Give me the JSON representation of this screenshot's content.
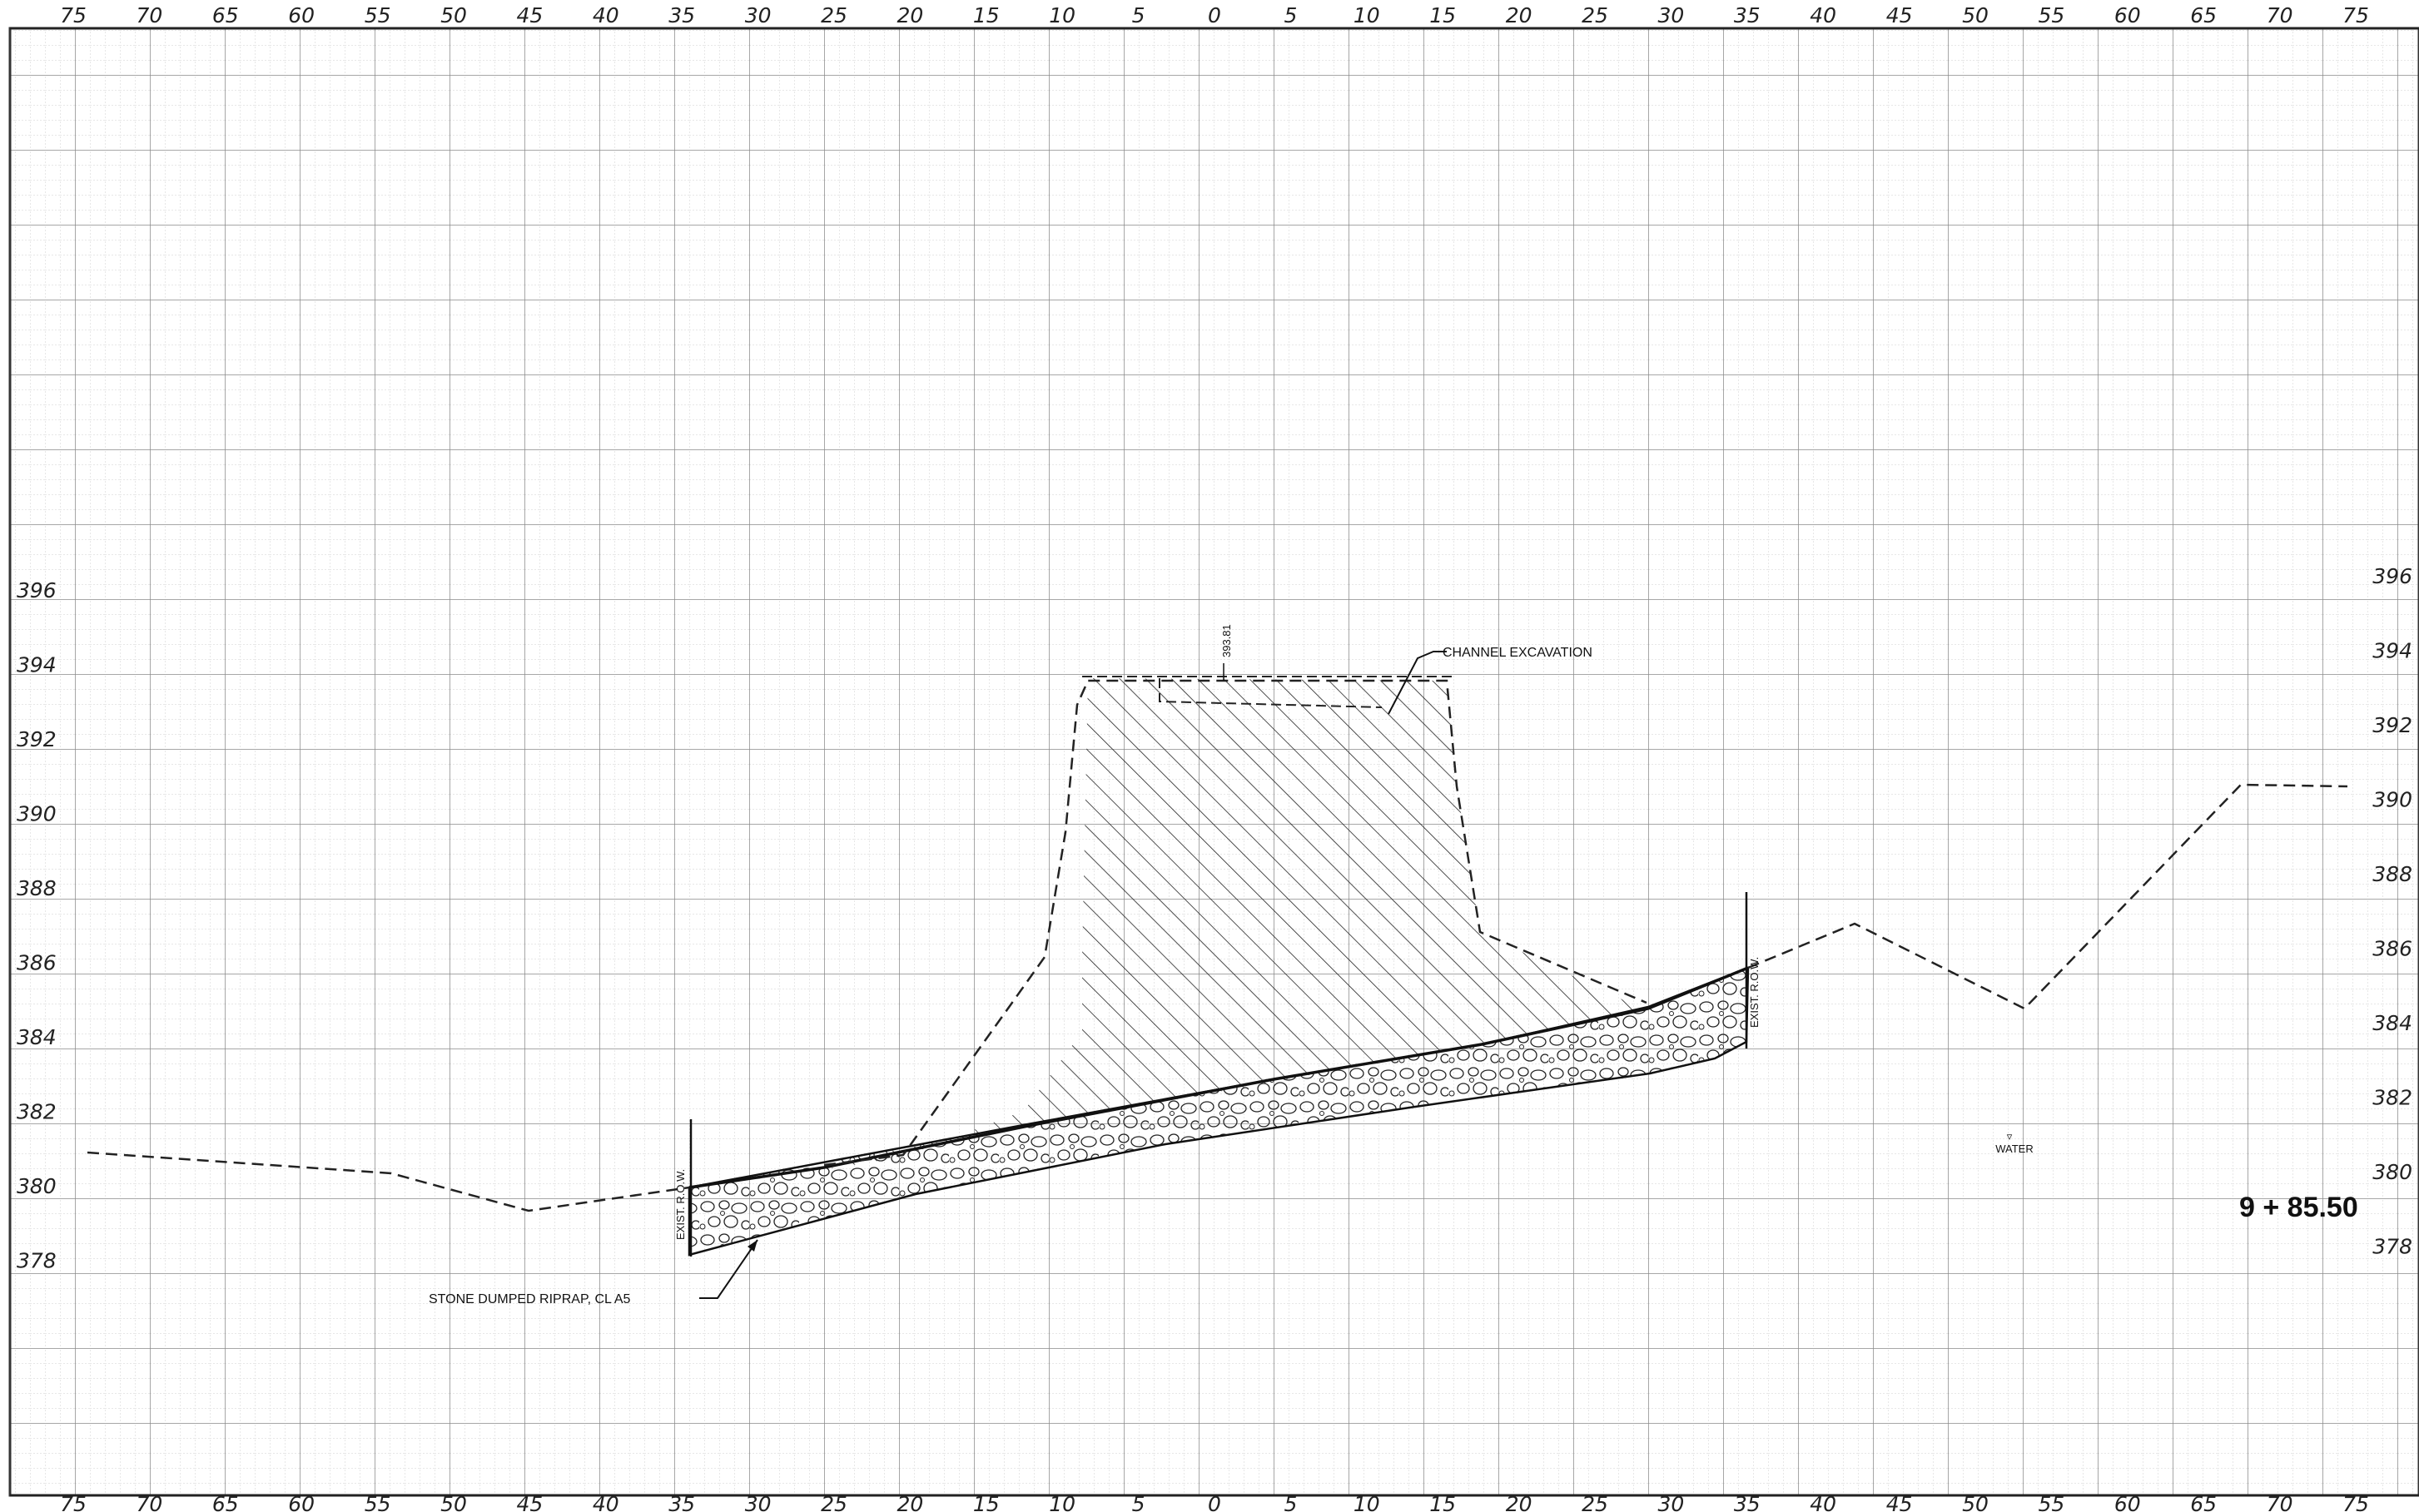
{
  "drawing": {
    "x_axis_ticks": [
      "75",
      "70",
      "65",
      "60",
      "55",
      "50",
      "45",
      "40",
      "35",
      "30",
      "25",
      "20",
      "15",
      "10",
      "5",
      "0",
      "5",
      "10",
      "15",
      "20",
      "25",
      "30",
      "35",
      "40",
      "45",
      "50",
      "55",
      "60",
      "65",
      "70",
      "75"
    ],
    "elevation_ticks": [
      "396",
      "394",
      "392",
      "390",
      "388",
      "386",
      "384",
      "382",
      "380",
      "378"
    ],
    "station": "9 + 85.50",
    "labels": {
      "channel_excavation": "CHANNEL EXCAVATION",
      "riprap": "STONE DUMPED RIPRAP, CL A5",
      "row_left": "EXIST. R.O.W.",
      "row_right": "EXIST. R.O.W.",
      "top_elevation": "393.81",
      "water": "WATER"
    },
    "colors": {
      "ink": "#111111",
      "grid_minor": "#c9c9c9",
      "grid_major": "#8a8a8a"
    }
  }
}
